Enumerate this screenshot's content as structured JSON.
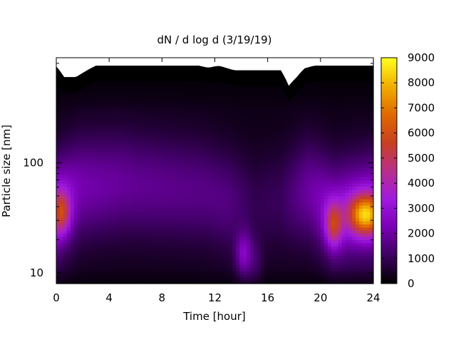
{
  "chart_data": {
    "type": "heatmap",
    "title": "dN / d log d (3/19/19)",
    "xlabel": "Time [hour]",
    "ylabel": "Particle size [nm]",
    "x_range": [
      0,
      24
    ],
    "x_ticks": [
      0,
      4,
      8,
      12,
      16,
      20,
      24
    ],
    "y_scale": "log",
    "y_range": [
      8,
      900
    ],
    "y_ticks": [
      10,
      100
    ],
    "colorbar": {
      "range": [
        0,
        9000
      ],
      "ticks": [
        0,
        1000,
        2000,
        3000,
        4000,
        5000,
        6000,
        7000,
        8000,
        9000
      ],
      "palette": [
        "#000000",
        "#3c0060",
        "#7a00b5",
        "#a01ae0",
        "#b82f8a",
        "#c94020",
        "#e06a00",
        "#f2b000",
        "#ffff20"
      ]
    },
    "background_level": 700,
    "mode_size_nm": [
      [
        0,
        38
      ],
      [
        2,
        60
      ],
      [
        5,
        65
      ],
      [
        8,
        60
      ],
      [
        11,
        55
      ],
      [
        13,
        45
      ],
      [
        15,
        40
      ],
      [
        17,
        45
      ],
      [
        19,
        55
      ],
      [
        21,
        35
      ],
      [
        24,
        40
      ]
    ],
    "mode_amplitude": [
      [
        0,
        2800
      ],
      [
        2,
        1900
      ],
      [
        6,
        1550
      ],
      [
        10,
        1400
      ],
      [
        13,
        1300
      ],
      [
        15,
        700
      ],
      [
        17,
        800
      ],
      [
        19,
        1700
      ],
      [
        21,
        2400
      ],
      [
        24,
        2700
      ]
    ],
    "hotspots": [
      {
        "time_h": 0.4,
        "size_nm": 36,
        "value": 4700
      },
      {
        "time_h": 21.0,
        "size_nm": 28,
        "value": 4700
      },
      {
        "time_h": 23.4,
        "size_nm": 34,
        "value": 7500
      },
      {
        "time_h": 14.2,
        "size_nm": 15,
        "value": 2500
      },
      {
        "time_h": 15.0,
        "size_nm": 13,
        "value": 1000
      }
    ],
    "upper_size_limit_nm": [
      [
        0,
        750
      ],
      [
        0.6,
        600
      ],
      [
        1.5,
        600
      ],
      [
        2.6,
        720
      ],
      [
        3.0,
        760
      ],
      [
        10.8,
        760
      ],
      [
        11.5,
        730
      ],
      [
        12.3,
        760
      ],
      [
        13.5,
        690
      ],
      [
        17.0,
        690
      ],
      [
        17.6,
        500
      ],
      [
        18.2,
        600
      ],
      [
        18.8,
        720
      ],
      [
        19.5,
        760
      ],
      [
        24,
        760
      ]
    ]
  }
}
